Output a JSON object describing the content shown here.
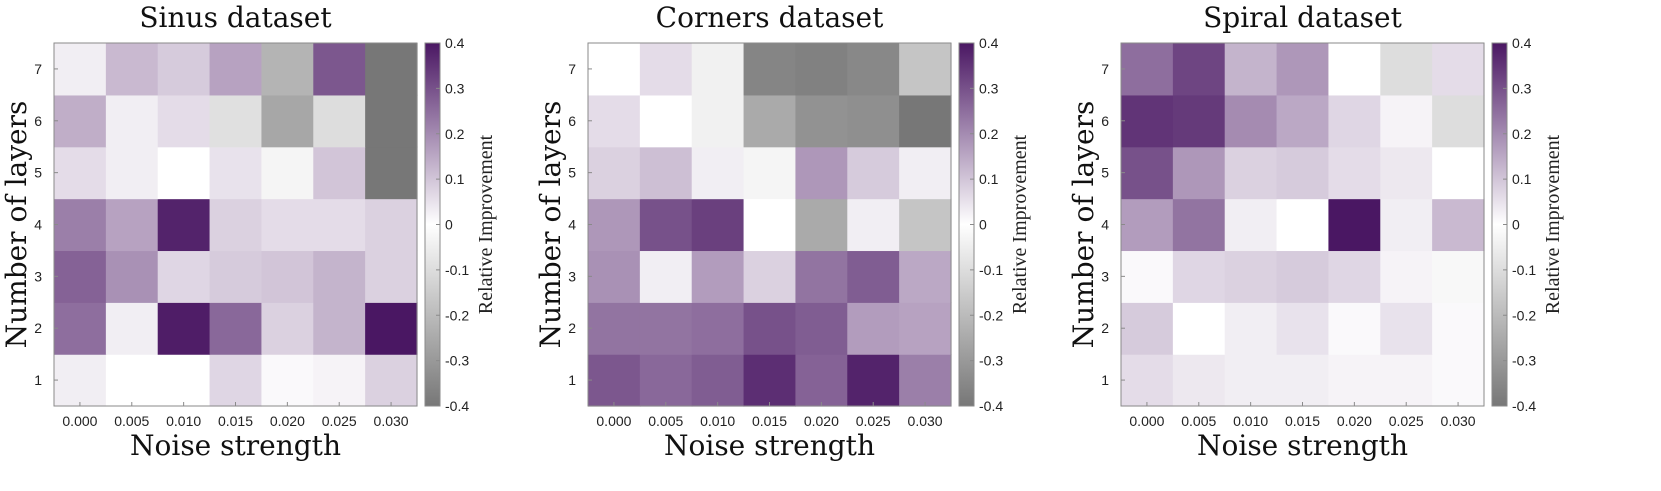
{
  "chart_data": [
    {
      "type": "heatmap",
      "title": "Sinus dataset",
      "xlabel": "Noise strength",
      "ylabel": "Number of layers",
      "x_categories": [
        "0.000",
        "0.005",
        "0.010",
        "0.015",
        "0.020",
        "0.025",
        "0.030"
      ],
      "y_categories": [
        "1",
        "2",
        "3",
        "4",
        "5",
        "6",
        "7"
      ],
      "values": [
        [
          0.03,
          0.0,
          0.0,
          0.07,
          0.01,
          0.02,
          0.08
        ],
        [
          0.25,
          0.03,
          0.39,
          0.26,
          0.08,
          0.13,
          0.4
        ],
        [
          0.27,
          0.19,
          0.07,
          0.09,
          0.1,
          0.13,
          0.08
        ],
        [
          0.22,
          0.16,
          0.38,
          0.08,
          0.06,
          0.06,
          0.08
        ],
        [
          0.06,
          0.03,
          0.0,
          0.05,
          -0.03,
          0.1,
          -0.4
        ],
        [
          0.14,
          0.03,
          0.06,
          -0.09,
          -0.26,
          -0.1,
          -0.4
        ],
        [
          0.03,
          0.12,
          0.09,
          0.16,
          -0.22,
          0.29,
          -0.4
        ]
      ],
      "colorbar": {
        "label": "Relative Improvement",
        "ticks": [
          "0.4",
          "0.3",
          "0.2",
          "0.1",
          "0",
          "-0.1",
          "-0.2",
          "-0.3",
          "-0.4"
        ],
        "range": [
          -0.4,
          0.4
        ]
      }
    },
    {
      "type": "heatmap",
      "title": "Corners dataset",
      "xlabel": "Noise strength",
      "ylabel": "Number of layers",
      "x_categories": [
        "0.000",
        "0.005",
        "0.010",
        "0.015",
        "0.020",
        "0.025",
        "0.030"
      ],
      "y_categories": [
        "1",
        "2",
        "3",
        "4",
        "5",
        "6",
        "7"
      ],
      "values": [
        [
          0.29,
          0.26,
          0.28,
          0.36,
          0.27,
          0.38,
          0.22
        ],
        [
          0.24,
          0.24,
          0.25,
          0.3,
          0.28,
          0.17,
          0.16
        ],
        [
          0.19,
          0.03,
          0.17,
          0.08,
          0.24,
          0.28,
          0.15
        ],
        [
          0.18,
          0.3,
          0.33,
          0.0,
          -0.25,
          0.03,
          -0.17
        ],
        [
          0.08,
          0.11,
          0.03,
          -0.03,
          0.18,
          0.09,
          0.03
        ],
        [
          0.06,
          0.0,
          -0.04,
          -0.25,
          -0.32,
          -0.33,
          -0.4
        ],
        [
          0.0,
          0.06,
          -0.04,
          -0.36,
          -0.37,
          -0.35,
          -0.17
        ]
      ],
      "colorbar": {
        "label": "Relative Improvement",
        "ticks": [
          "0.4",
          "0.3",
          "0.2",
          "0.1",
          "0",
          "-0.1",
          "-0.2",
          "-0.3",
          "-0.4"
        ],
        "range": [
          -0.4,
          0.4
        ]
      }
    },
    {
      "type": "heatmap",
      "title": "Spiral dataset",
      "xlabel": "Noise strength",
      "ylabel": "Number of layers",
      "x_categories": [
        "0.000",
        "0.005",
        "0.010",
        "0.015",
        "0.020",
        "0.025",
        "0.030"
      ],
      "y_categories": [
        "1",
        "2",
        "3",
        "4",
        "5",
        "6",
        "7"
      ],
      "values": [
        [
          0.06,
          0.04,
          0.03,
          0.03,
          0.02,
          0.02,
          0.01
        ],
        [
          0.09,
          0.0,
          0.03,
          0.05,
          0.01,
          0.05,
          0.01
        ],
        [
          0.01,
          0.07,
          0.08,
          0.09,
          0.07,
          0.02,
          -0.02
        ],
        [
          0.17,
          0.24,
          0.03,
          0.0,
          0.4,
          0.03,
          0.12
        ],
        [
          0.3,
          0.18,
          0.08,
          0.09,
          0.06,
          0.04,
          0.0
        ],
        [
          0.35,
          0.34,
          0.2,
          0.15,
          0.07,
          0.02,
          -0.1
        ],
        [
          0.25,
          0.32,
          0.13,
          0.18,
          0.0,
          -0.1,
          0.06
        ]
      ],
      "colorbar": {
        "label": "Relative Improvement",
        "ticks": [
          "0.4",
          "0.3",
          "0.2",
          "0.1",
          "0",
          "-0.1",
          "-0.2",
          "-0.3",
          "-0.4"
        ],
        "range": [
          -0.4,
          0.4
        ]
      }
    }
  ],
  "colors": {
    "positive_max": "#4a1763",
    "zero": "#ffffff",
    "negative_max": "#777777",
    "axis": "#8a8a8a"
  }
}
